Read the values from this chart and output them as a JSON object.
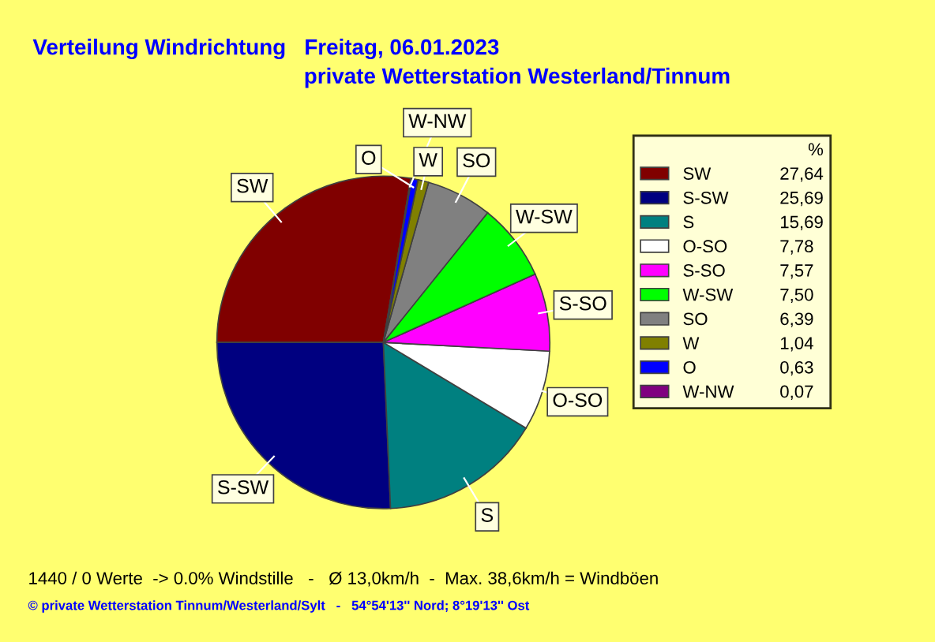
{
  "chart_data": {
    "type": "pie",
    "title": "Verteilung Windrichtung   Freitag, 06.01.2023",
    "subtitle": "private Wetterstation Westerland/Tinnum",
    "categories": [
      "SW",
      "S-SW",
      "S",
      "O-SO",
      "S-SO",
      "W-SW",
      "SO",
      "W",
      "O",
      "W-NW"
    ],
    "values": [
      27.64,
      25.69,
      15.69,
      7.78,
      7.57,
      7.5,
      6.39,
      1.04,
      0.63,
      0.07
    ],
    "value_labels": [
      "27,64",
      "25,69",
      "15,69",
      "7,78",
      "7,57",
      "7,50",
      "6,39",
      "1,04",
      "0,63",
      "0,07"
    ],
    "colors": [
      "#800000",
      "#000080",
      "#008080",
      "#ffffff",
      "#ff00ff",
      "#00ff00",
      "#808080",
      "#808000",
      "#0000ff",
      "#800080"
    ],
    "legend": "right",
    "legend_title": "%",
    "annotations": [
      "1440 / 0 Werte  -> 0.0% Windstille   -   Ø 13,0km/h  -  Max. 38,6km/h = Windböen",
      "© private Wetterstation Tinnum/Westerland/Sylt   -   54°54'13'' Nord; 8°19'13'' Ost"
    ]
  }
}
